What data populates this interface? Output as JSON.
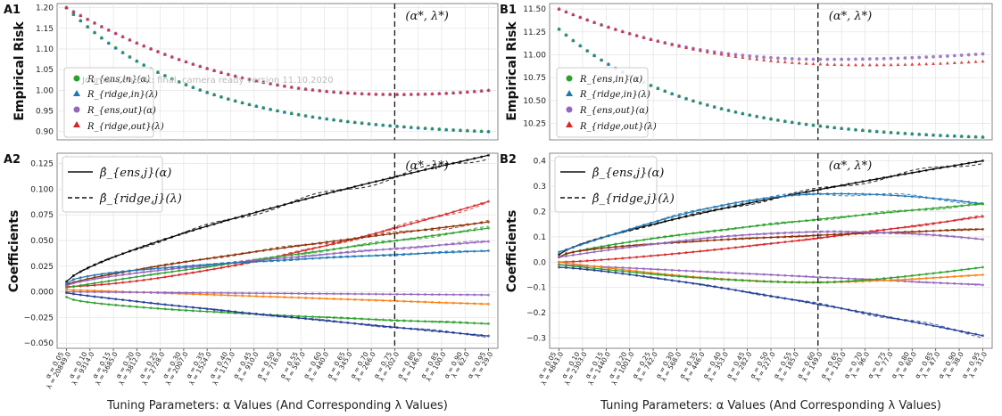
{
  "figure": {
    "watermark": "Journal Content: final, camera ready version 11.10.2020",
    "x_axis_title": "Tuning Parameters: α Values (And Corresponding λ Values)",
    "optimum_label": "(α*, λ*)"
  },
  "chart_data": [
    {
      "id": "A1",
      "type": "scatter",
      "ylabel": "Empirical Risk",
      "ylim": [
        0.88,
        1.21
      ],
      "yticks": [
        0.9,
        0.95,
        1.0,
        1.05,
        1.1,
        1.15,
        1.2
      ],
      "ytick_labels": [
        "0.90",
        "0.95",
        "1.00",
        "1.05",
        "1.10",
        "1.15",
        "1.20"
      ],
      "alpha_values": [
        0.05,
        0.1,
        0.15,
        0.2,
        0.25,
        0.3,
        0.35,
        0.4,
        0.45,
        0.5,
        0.55,
        0.6,
        0.65,
        0.7,
        0.75,
        0.8,
        0.85,
        0.9,
        0.95
      ],
      "lambda_values": [
        20849.0,
        9314.0,
        5685.0,
        3812.0,
        2728.0,
        2007.0,
        1524.0,
        1173.0,
        910.0,
        716.0,
        567.0,
        440.0,
        345.0,
        266.0,
        202.0,
        146.0,
        100.0,
        62.0,
        29.0
      ],
      "optimum_alpha": 0.75,
      "legend": [
        {
          "label": "R_{ens,in}(α)",
          "color": "#2ca02c",
          "marker": "circle"
        },
        {
          "label": "R_{ridge,in}(λ)",
          "color": "#1f77b4",
          "marker": "triangle"
        },
        {
          "label": "R_{ens,out}(α)",
          "color": "#9467bd",
          "marker": "circle"
        },
        {
          "label": "R_{ridge,out}(λ)",
          "color": "#d62728",
          "marker": "triangle"
        }
      ],
      "legend_loc": "center-left",
      "series": [
        {
          "color": "#2ca02c",
          "x": [
            0.05,
            0.95
          ],
          "y": [
            1.2,
            0.9
          ],
          "shape": "in"
        },
        {
          "color": "#1f77b4",
          "x": [
            0.05,
            0.95
          ],
          "y": [
            1.2,
            0.9
          ],
          "shape": "in"
        },
        {
          "color": "#9467bd",
          "x": [
            0.05,
            0.95
          ],
          "y": [
            1.2,
            1.0
          ],
          "shape": "out",
          "min_alpha": 0.76,
          "min_val": 0.99
        },
        {
          "color": "#d62728",
          "x": [
            0.05,
            0.95
          ],
          "y": [
            1.2,
            1.0
          ],
          "shape": "out",
          "min_alpha": 0.76,
          "min_val": 0.99
        }
      ]
    },
    {
      "id": "A2",
      "type": "line",
      "ylabel": "Coefficients",
      "ylim": [
        -0.055,
        0.135
      ],
      "yticks": [
        -0.05,
        -0.025,
        0.0,
        0.025,
        0.05,
        0.075,
        0.1,
        0.125
      ],
      "ytick_labels": [
        "−0.050",
        "−0.025",
        "0.000",
        "0.025",
        "0.050",
        "0.075",
        "0.100",
        "0.125"
      ],
      "optimum_alpha": 0.75,
      "legend": [
        {
          "label": "β̂_{ens,j}(α)",
          "style": "solid"
        },
        {
          "label": "β̂_{ridge,j}(λ)",
          "style": "dashed"
        }
      ],
      "legend_loc": "upper-left",
      "series": [
        {
          "color": "#000000",
          "y0": 0.01,
          "y1": 0.133,
          "curve": 0.75
        },
        {
          "color": "#d62728",
          "y0": 0.005,
          "y1": 0.088,
          "curve": 1.5
        },
        {
          "color": "#8c2d04",
          "y0": 0.007,
          "y1": 0.068,
          "curve": 0.8
        },
        {
          "color": "#2ca02c",
          "y0": 0.004,
          "y1": 0.062,
          "curve": 0.95
        },
        {
          "color": "#9467bd",
          "y0": 0.006,
          "y1": 0.049,
          "curve": 0.7
        },
        {
          "color": "#1f77b4",
          "y0": 0.008,
          "y1": 0.04,
          "curve": 0.5
        },
        {
          "color": "#ff7f0e",
          "y0": 0.002,
          "y1": -0.012,
          "curve": 1.0
        },
        {
          "color": "#9467bd",
          "y0": 0.0,
          "y1": -0.003,
          "curve": 1.0
        },
        {
          "color": "#2ca02c",
          "y0": -0.005,
          "y1": -0.031,
          "curve": 0.55
        },
        {
          "color": "#1f3a93",
          "y0": -0.001,
          "y1": -0.043,
          "curve": 0.9
        }
      ]
    },
    {
      "id": "B1",
      "type": "scatter",
      "ylabel": "Empirical Risk",
      "ylim": [
        10.07,
        11.56
      ],
      "yticks": [
        10.25,
        10.5,
        10.75,
        11.0,
        11.25,
        11.5
      ],
      "ytick_labels": [
        "10.25",
        "10.50",
        "10.75",
        "11.00",
        "11.25",
        "11.50"
      ],
      "alpha_values": [
        0.05,
        0.1,
        0.15,
        0.2,
        0.25,
        0.3,
        0.35,
        0.4,
        0.45,
        0.5,
        0.55,
        0.6,
        0.65,
        0.7,
        0.75,
        0.8,
        0.85,
        0.9,
        0.95
      ],
      "lambda_values": [
        4843.0,
        2303.0,
        1440.0,
        1001.0,
        742.0,
        568.0,
        446.0,
        353.0,
        282.0,
        227.0,
        185.0,
        149.0,
        120.0,
        96.0,
        77.0,
        60.0,
        47.0,
        38.0,
        31.0
      ],
      "optimum_alpha": 0.6,
      "legend": [
        {
          "label": "R_{ens,in}(α)",
          "color": "#2ca02c",
          "marker": "circle"
        },
        {
          "label": "R_{ridge,in}(λ)",
          "color": "#1f77b4",
          "marker": "triangle"
        },
        {
          "label": "R_{ens,out}(α)",
          "color": "#9467bd",
          "marker": "circle"
        },
        {
          "label": "R_{ridge,out}(λ)",
          "color": "#d62728",
          "marker": "triangle"
        }
      ],
      "legend_loc": "center-left",
      "series": [
        {
          "color": "#2ca02c",
          "x": [
            0.05,
            0.95
          ],
          "y": [
            11.28,
            10.1
          ],
          "shape": "in"
        },
        {
          "color": "#1f77b4",
          "x": [
            0.05,
            0.95
          ],
          "y": [
            11.28,
            10.1
          ],
          "shape": "in"
        },
        {
          "color": "#9467bd",
          "x": [
            0.05,
            0.95
          ],
          "y": [
            11.5,
            11.01
          ],
          "shape": "out",
          "min_alpha": 0.62,
          "min_val": 10.95
        },
        {
          "color": "#d62728",
          "x": [
            0.05,
            0.95
          ],
          "y": [
            11.5,
            10.93
          ],
          "shape": "out",
          "min_alpha": 0.7,
          "min_val": 10.89
        }
      ]
    },
    {
      "id": "B2",
      "type": "line",
      "ylabel": "Coefficients",
      "ylim": [
        -0.34,
        0.43
      ],
      "yticks": [
        -0.3,
        -0.2,
        -0.1,
        0.0,
        0.1,
        0.2,
        0.3,
        0.4
      ],
      "ytick_labels": [
        "−0.3",
        "−0.2",
        "−0.1",
        "0.0",
        "0.1",
        "0.2",
        "0.3",
        "0.4"
      ],
      "optimum_alpha": 0.6,
      "legend": [
        {
          "label": "β̂_{ens,j}(α)",
          "style": "solid"
        },
        {
          "label": "β̂_{ridge,j}(λ)",
          "style": "dashed"
        }
      ],
      "legend_loc": "upper-left",
      "series": [
        {
          "color": "#000000",
          "y0": 0.03,
          "y1": 0.4,
          "curve": 0.75
        },
        {
          "color": "#1f77b4",
          "y0": 0.04,
          "y1": 0.23,
          "hump": 0.27
        },
        {
          "color": "#2ca02c",
          "y0": 0.02,
          "y1": 0.23,
          "curve": 0.7
        },
        {
          "color": "#d62728",
          "y0": 0.0,
          "y1": 0.18,
          "curve": 1.3
        },
        {
          "color": "#8c2d04",
          "y0": 0.02,
          "y1": 0.13,
          "curve": 0.5
        },
        {
          "color": "#9467bd",
          "y0": 0.02,
          "y1": 0.09,
          "hump": 0.12
        },
        {
          "color": "#9467bd",
          "y0": -0.01,
          "y1": -0.09,
          "curve": 1.0
        },
        {
          "color": "#ff7f0e",
          "y0": 0.0,
          "y1": -0.05,
          "dip": -0.08
        },
        {
          "color": "#2ca02c",
          "y0": -0.01,
          "y1": -0.02,
          "dip": -0.08
        },
        {
          "color": "#1f3a93",
          "y0": -0.02,
          "y1": -0.29,
          "curve": 1.25
        }
      ]
    }
  ]
}
